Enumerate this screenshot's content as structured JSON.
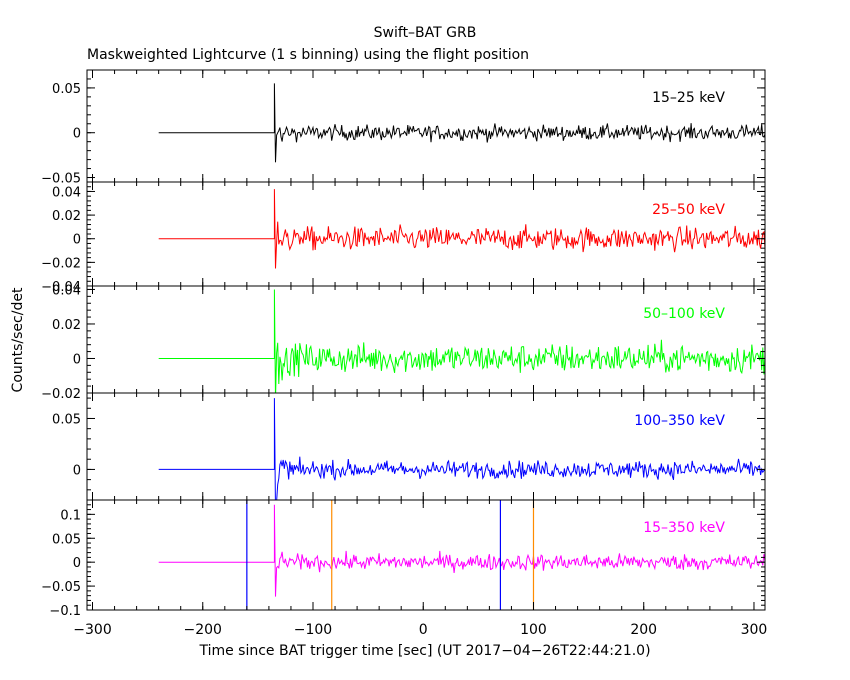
{
  "chart_data": {
    "type": "line",
    "title": "Swift–BAT GRB",
    "subtitle": "Maskweighted Lightcurve (1 s binning) using the flight position",
    "ylabel": "Counts/sec/det",
    "xlabel": "Time since BAT trigger time [sec] (UT 2017−04−26T22:44:21.0)",
    "xlim": [
      -305,
      310
    ],
    "x_ticks": [
      -300,
      -200,
      -100,
      0,
      100,
      200,
      300
    ],
    "x_tick_labels": [
      "−300",
      "−200",
      "−100",
      "0",
      "100",
      "200",
      "300"
    ],
    "data_start": -240,
    "burst_onset": -135,
    "series": [
      {
        "name": "15–25 keV",
        "color": "#000000",
        "ylim": [
          -0.055,
          0.07
        ],
        "yticks": [
          -0.05,
          0,
          0.05
        ],
        "ytick_labels": [
          "−0.05",
          "0",
          "0.05"
        ],
        "noise": 0.006,
        "spike": 0.055,
        "offset": 0.0
      },
      {
        "name": "25–50 keV",
        "color": "#ff0000",
        "ylim": [
          -0.04,
          0.048
        ],
        "yticks": [
          -0.04,
          -0.02,
          0,
          0.02,
          0.04
        ],
        "ytick_labels": [
          "−0.04",
          "−0.02",
          "0",
          "0.02",
          "0.04"
        ],
        "noise": 0.007,
        "spike": 0.042,
        "offset": 0.0
      },
      {
        "name": "50–100 keV",
        "color": "#00ff00",
        "ylim": [
          -0.02,
          0.042
        ],
        "yticks": [
          -0.02,
          0,
          0.02,
          0.04
        ],
        "ytick_labels": [
          "−0.02",
          "0",
          "0.02",
          "0.04"
        ],
        "noise": 0.006,
        "spike": 0.04,
        "offset": 0.0
      },
      {
        "name": "100–350 keV",
        "color": "#0000ff",
        "ylim": [
          -0.03,
          0.075
        ],
        "yticks": [
          0,
          0.05
        ],
        "ytick_labels": [
          "0",
          "0.05"
        ],
        "noise": 0.006,
        "spike": 0.07,
        "offset": 0.0
      },
      {
        "name": "15–350 keV",
        "color": "#ff00ff",
        "ylim": [
          -0.1,
          0.13
        ],
        "yticks": [
          -0.1,
          -0.05,
          0,
          0.05,
          0.1
        ],
        "ytick_labels": [
          "−0.1",
          "−0.05",
          "0",
          "0.05",
          "0.1"
        ],
        "noise": 0.012,
        "spike": 0.12,
        "offset": 0.0
      }
    ],
    "vertical_lines": [
      {
        "x": -160,
        "color": "#0000ff"
      },
      {
        "x": 70,
        "color": "#0000ff"
      },
      {
        "x": -83,
        "color": "#ff8c00"
      },
      {
        "x": 100,
        "color": "#ff8c00"
      }
    ],
    "vertical_lines_panel": 4
  }
}
